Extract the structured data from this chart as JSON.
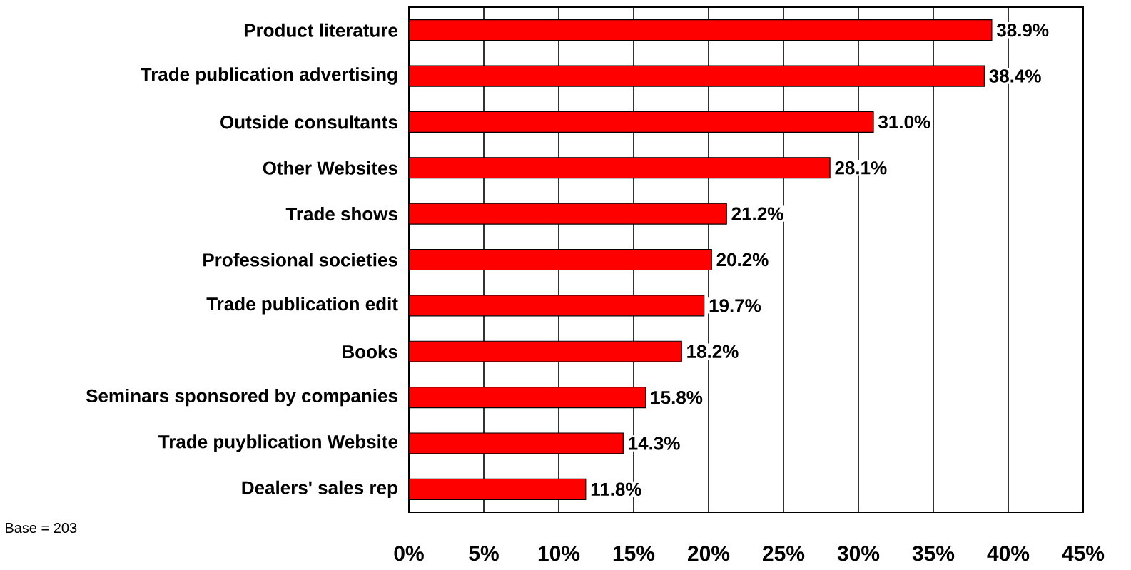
{
  "chart_data": {
    "type": "bar",
    "orientation": "horizontal",
    "categories": [
      "Product literature",
      "Trade publication advertising",
      "Outside consultants",
      "Other Websites",
      "Trade shows",
      "Professional societies",
      "Trade publication edit",
      "Books",
      "Seminars sponsored by companies",
      "Trade puyblication Website",
      "Dealers' sales rep"
    ],
    "values": [
      38.9,
      38.4,
      31.0,
      28.1,
      21.2,
      20.2,
      19.7,
      18.2,
      15.8,
      14.3,
      11.8
    ],
    "value_labels": [
      "38.9%",
      "38.4%",
      "31.0%",
      "28.1%",
      "21.2%",
      "20.2%",
      "19.7%",
      "18.2%",
      "15.8%",
      "14.3%",
      "11.8%"
    ],
    "color": "#ff0000",
    "xlim": [
      0,
      45
    ],
    "xticks": [
      {
        "value": 0,
        "label": "0%"
      },
      {
        "value": 5,
        "label": "5%"
      },
      {
        "value": 10,
        "label": "10%"
      },
      {
        "value": 15,
        "label": "15%"
      },
      {
        "value": 20,
        "label": "20%"
      },
      {
        "value": 25,
        "label": "25%"
      },
      {
        "value": 30,
        "label": "30%"
      },
      {
        "value": 35,
        "label": "35%"
      },
      {
        "value": 40,
        "label": "40%"
      },
      {
        "value": 45,
        "label": "45%"
      }
    ],
    "grid": "x",
    "annotations": [
      "Base = 203"
    ]
  }
}
